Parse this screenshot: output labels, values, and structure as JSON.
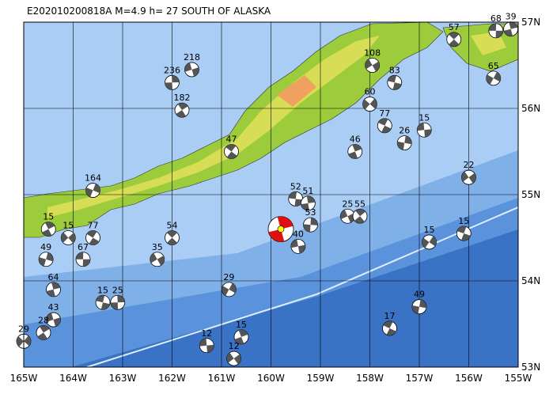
{
  "map": {
    "title": "E202010200818A  M=4.9  h= 27  SOUTH OF ALASKA",
    "xlim": [
      -165,
      -155
    ],
    "ylim": [
      53,
      57
    ],
    "xticks": [
      {
        "value": -165,
        "label": "165W"
      },
      {
        "value": -164,
        "label": "164W"
      },
      {
        "value": -163,
        "label": "163W"
      },
      {
        "value": -162,
        "label": "162W"
      },
      {
        "value": -161,
        "label": "161W"
      },
      {
        "value": -160,
        "label": "160W"
      },
      {
        "value": -159,
        "label": "159W"
      },
      {
        "value": -158,
        "label": "158W"
      },
      {
        "value": -157,
        "label": "157W"
      },
      {
        "value": -156,
        "label": "156W"
      },
      {
        "value": -155,
        "label": "155W"
      }
    ],
    "yticks": [
      {
        "value": 53,
        "label": "53N"
      },
      {
        "value": 54,
        "label": "54N"
      },
      {
        "value": 55,
        "label": "55N"
      },
      {
        "value": 56,
        "label": "56N"
      },
      {
        "value": 57,
        "label": "57N"
      }
    ],
    "main_event": {
      "lon": -159.8,
      "lat": 54.6
    },
    "events": [
      {
        "lon": -155.45,
        "lat": 56.9,
        "depth": 68
      },
      {
        "lon": -155.15,
        "lat": 56.92,
        "depth": 39
      },
      {
        "lon": -157.95,
        "lat": 56.5,
        "depth": 108
      },
      {
        "lon": -156.3,
        "lat": 56.8,
        "depth": 57
      },
      {
        "lon": -155.5,
        "lat": 56.35,
        "depth": 65
      },
      {
        "lon": -157.5,
        "lat": 56.3,
        "depth": 83
      },
      {
        "lon": -162.0,
        "lat": 56.3,
        "depth": 236
      },
      {
        "lon": -161.6,
        "lat": 56.45,
        "depth": 218
      },
      {
        "lon": -161.8,
        "lat": 55.98,
        "depth": 182
      },
      {
        "lon": -158.0,
        "lat": 56.05,
        "depth": 60
      },
      {
        "lon": -157.7,
        "lat": 55.8,
        "depth": 77
      },
      {
        "lon": -157.3,
        "lat": 55.6,
        "depth": 26
      },
      {
        "lon": -156.9,
        "lat": 55.75,
        "depth": 15
      },
      {
        "lon": -158.3,
        "lat": 55.5,
        "depth": 46
      },
      {
        "lon": -156.0,
        "lat": 55.2,
        "depth": 22
      },
      {
        "lon": -160.8,
        "lat": 55.5,
        "depth": 47
      },
      {
        "lon": -163.6,
        "lat": 55.05,
        "depth": 164
      },
      {
        "lon": -159.5,
        "lat": 54.95,
        "depth": 52
      },
      {
        "lon": -159.25,
        "lat": 54.9,
        "depth": 51
      },
      {
        "lon": -158.45,
        "lat": 54.75,
        "depth": 25
      },
      {
        "lon": -158.2,
        "lat": 54.75,
        "depth": 55
      },
      {
        "lon": -156.8,
        "lat": 54.45,
        "depth": 15
      },
      {
        "lon": -156.1,
        "lat": 54.55,
        "depth": 15
      },
      {
        "lon": -159.2,
        "lat": 54.65,
        "depth": 53
      },
      {
        "lon": -159.45,
        "lat": 54.4,
        "depth": 40
      },
      {
        "lon": -164.5,
        "lat": 54.6,
        "depth": 15
      },
      {
        "lon": -164.1,
        "lat": 54.5,
        "depth": 15
      },
      {
        "lon": -163.6,
        "lat": 54.5,
        "depth": 77
      },
      {
        "lon": -164.55,
        "lat": 54.25,
        "depth": 49
      },
      {
        "lon": -163.8,
        "lat": 54.25,
        "depth": 67
      },
      {
        "lon": -164.4,
        "lat": 53.9,
        "depth": 64
      },
      {
        "lon": -162.3,
        "lat": 54.25,
        "depth": 35
      },
      {
        "lon": -162.0,
        "lat": 54.5,
        "depth": 54
      },
      {
        "lon": -160.85,
        "lat": 53.9,
        "depth": 29
      },
      {
        "lon": -163.4,
        "lat": 53.75,
        "depth": 15
      },
      {
        "lon": -163.1,
        "lat": 53.75,
        "depth": 25
      },
      {
        "lon": -164.4,
        "lat": 53.55,
        "depth": 43
      },
      {
        "lon": -164.6,
        "lat": 53.4,
        "depth": 28
      },
      {
        "lon": -165.0,
        "lat": 53.3,
        "depth": 29
      },
      {
        "lon": -157.6,
        "lat": 53.45,
        "depth": 17
      },
      {
        "lon": -157.0,
        "lat": 53.7,
        "depth": 49
      },
      {
        "lon": -161.3,
        "lat": 53.25,
        "depth": 12
      },
      {
        "lon": -160.6,
        "lat": 53.35,
        "depth": 15
      },
      {
        "lon": -160.75,
        "lat": 53.1,
        "depth": 12
      }
    ]
  }
}
